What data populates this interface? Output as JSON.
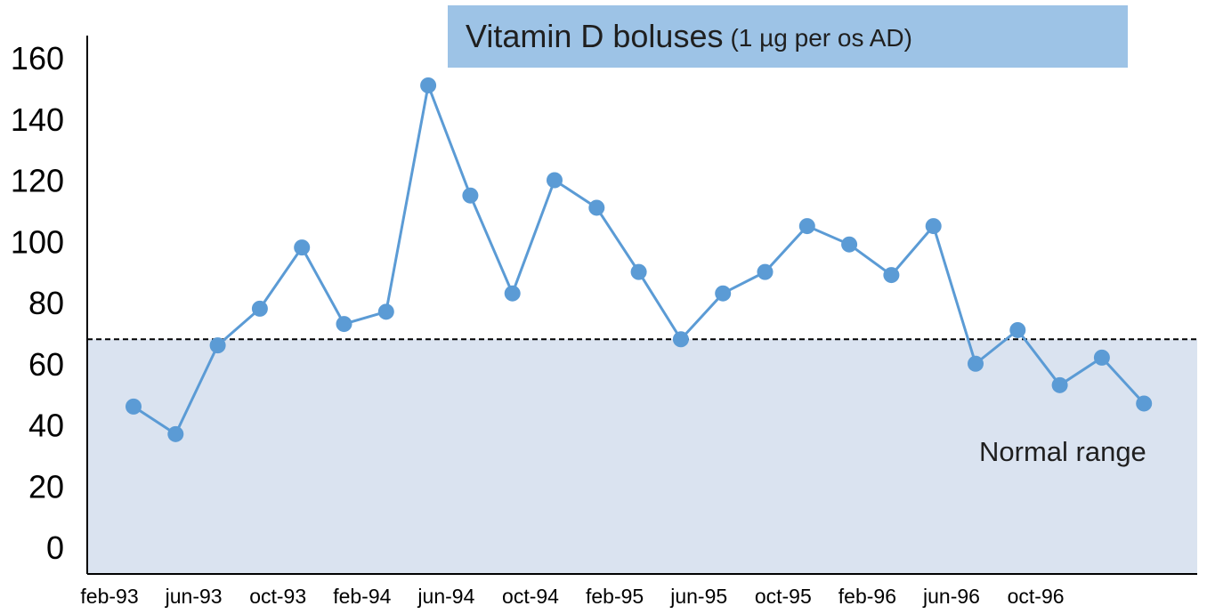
{
  "chart_data": {
    "type": "line",
    "title": "Vitamin D boluses",
    "subtitle": "(1 µg per os AD)",
    "xlabel": "",
    "ylabel": "",
    "ylim": [
      0,
      160
    ],
    "yticks": [
      0,
      20,
      40,
      60,
      80,
      100,
      120,
      140,
      160
    ],
    "x_tick_labels": [
      "feb-93",
      "jun-93",
      "oct-93",
      "feb-94",
      "jun-94",
      "oct-94",
      "feb-95",
      "jun-95",
      "oct-95",
      "feb-96",
      "jun-96",
      "oct-96"
    ],
    "grid": false,
    "legend": "none",
    "series": [
      {
        "values": [
          46,
          37,
          66,
          78,
          98,
          73,
          77,
          151,
          115,
          83,
          120,
          111,
          90,
          68,
          83,
          90,
          105,
          99,
          89,
          105,
          60,
          71,
          53,
          62,
          47
        ],
        "color": "#5b9bd5"
      }
    ],
    "reference_line": {
      "value": 68,
      "style": "dashed",
      "color": "#000000"
    },
    "shaded_region": {
      "from": 0,
      "to": 68,
      "color": "#dae3f0",
      "label": "Normal range"
    }
  }
}
